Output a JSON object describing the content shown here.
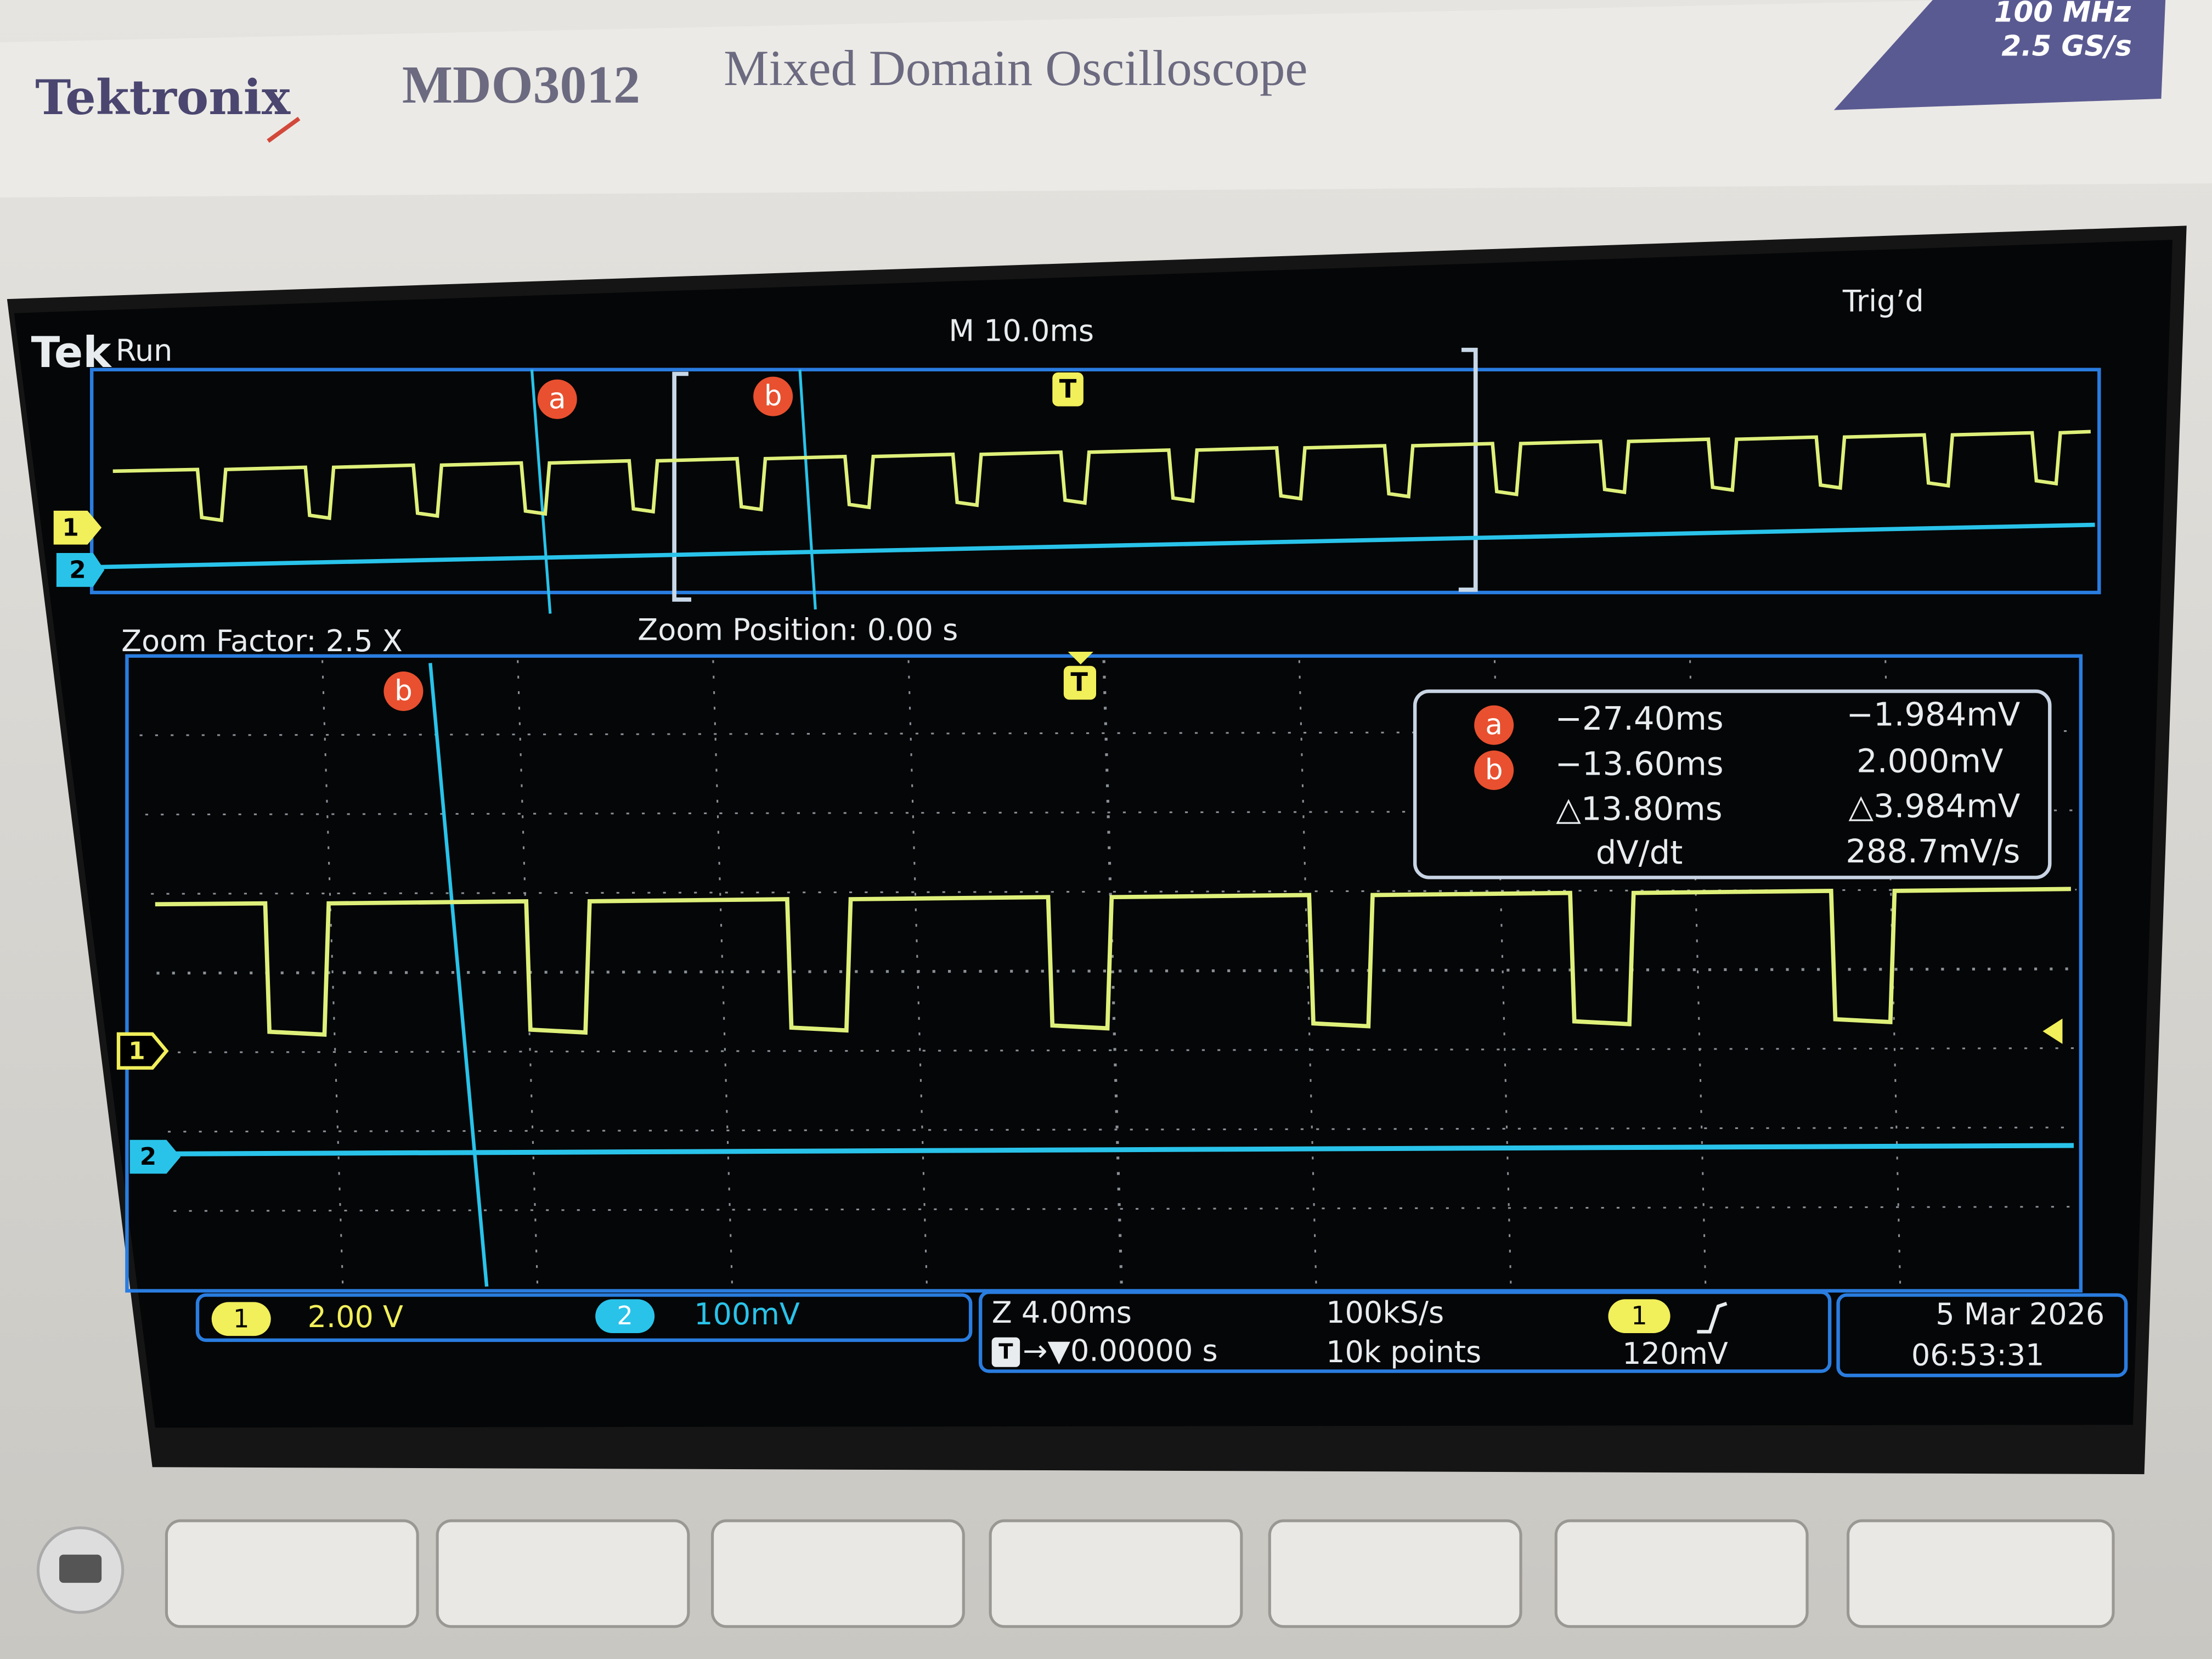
{
  "header": {
    "brand": "Tektronix",
    "model": "MDO3012",
    "product": "Mixed Domain Oscilloscope",
    "specs": [
      "100 MHz",
      "2.5 GS/s"
    ]
  },
  "screen": {
    "logo": "Tek",
    "status": "Run",
    "timebase": "M 10.0ms",
    "trigger_state": "Trig’d",
    "markers": {
      "cursor_a": "a",
      "cursor_b": "b",
      "trigger": "T",
      "channel_1": "1",
      "channel_2": "2"
    },
    "zoom": {
      "factor": "Zoom Factor: 2.5 X",
      "position": "Zoom Position: 0.00 s"
    },
    "readout": {
      "rows": [
        [
          "a",
          "−27.40ms",
          "−1.984mV"
        ],
        [
          "b",
          "−13.60ms",
          "2.000mV"
        ],
        [
          "△13.80ms",
          "△3.984mV"
        ],
        [
          "dV/dt",
          "288.7mV/s"
        ]
      ]
    },
    "status_bar": {
      "ch1": {
        "label": "1",
        "scale": "2.00 V"
      },
      "ch2": {
        "label": "2",
        "scale": "100mV"
      },
      "zoom_scale": "Z 4.00ms",
      "trigger_position_icon": "T",
      "trigger_position": "→▼0.00000 s",
      "sample_rate": "100kS/s",
      "record_length": "10k points",
      "trigger": {
        "source": "1",
        "level": "120mV"
      },
      "date": "5 Mar 2026",
      "time": "06:53:31"
    }
  }
}
